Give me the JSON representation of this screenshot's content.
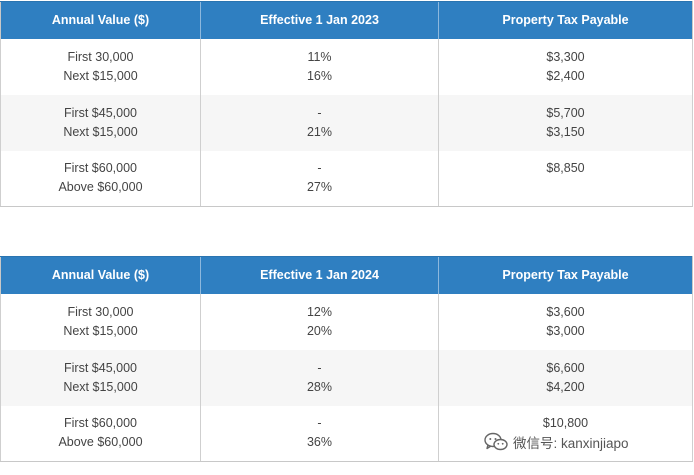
{
  "tables": [
    {
      "headers": [
        "Annual Value ($)",
        "Effective 1 Jan 2023",
        "Property Tax Payable"
      ],
      "rows": [
        {
          "annual": [
            "First 30,000",
            "Next $15,000"
          ],
          "rate": [
            "11%",
            "16%"
          ],
          "payable": [
            "$3,300",
            "$2,400"
          ]
        },
        {
          "annual": [
            "First $45,000",
            "Next $15,000"
          ],
          "rate": [
            "-",
            "21%"
          ],
          "payable": [
            "$5,700",
            "$3,150"
          ]
        },
        {
          "annual": [
            "First $60,000",
            "Above $60,000"
          ],
          "rate": [
            "-",
            "27%"
          ],
          "payable": [
            "$8,850",
            ""
          ]
        }
      ]
    },
    {
      "headers": [
        "Annual Value ($)",
        "Effective 1 Jan 2024",
        "Property Tax Payable"
      ],
      "rows": [
        {
          "annual": [
            "First 30,000",
            "Next $15,000"
          ],
          "rate": [
            "12%",
            "20%"
          ],
          "payable": [
            "$3,600",
            "$3,000"
          ]
        },
        {
          "annual": [
            "First $45,000",
            "Next $15,000"
          ],
          "rate": [
            "-",
            "28%"
          ],
          "payable": [
            "$6,600",
            "$4,200"
          ]
        },
        {
          "annual": [
            "First $60,000",
            "Above $60,000"
          ],
          "rate": [
            "-",
            "36%"
          ],
          "payable": [
            "$10,800",
            ""
          ]
        }
      ]
    }
  ],
  "watermark": {
    "icon": "wechat-icon",
    "text": "微信号: kanxinjiapo"
  },
  "colors": {
    "header_bg": "#2f7fc1",
    "header_text": "#ffffff",
    "stripe_bg": "#f6f6f6",
    "body_text": "#444444"
  }
}
